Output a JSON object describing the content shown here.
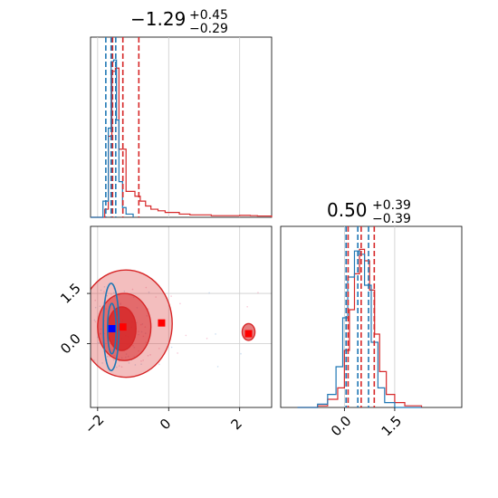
{
  "chart_data": {
    "type": "corner",
    "parameters": [
      {
        "title_value": "−1.29",
        "title_plus": "+0.45",
        "title_minus": "−0.29"
      },
      {
        "title_value": "0.50",
        "title_plus": "+0.39",
        "title_minus": "−0.39"
      }
    ],
    "colors": {
      "red": "#d62728",
      "blue": "#1f77b4",
      "red_marker": "#ff0000",
      "blue_marker": "#0000ff",
      "grid": "#cccccc"
    },
    "ranges": {
      "x": [
        -2.2,
        2.9
      ],
      "y": [
        -1.9,
        3.5
      ]
    },
    "ticks": {
      "x": [
        {
          "value": -2,
          "label": "−2"
        },
        {
          "value": 0,
          "label": "0"
        },
        {
          "value": 2,
          "label": "2"
        }
      ],
      "y": [
        {
          "value": 0.0,
          "label": "0.0"
        },
        {
          "value": 1.5,
          "label": "1.5"
        }
      ]
    },
    "hist_x": {
      "quantiles_red": [
        -1.58,
        -1.29,
        -0.84
      ],
      "quantiles_blue": [
        -1.77,
        -1.62,
        -1.49
      ],
      "red_bins": [
        [
          -2.2,
          0.0
        ],
        [
          -1.8,
          0.05
        ],
        [
          -1.7,
          0.5
        ],
        [
          -1.6,
          0.9
        ],
        [
          -1.5,
          0.92
        ],
        [
          -1.4,
          0.42
        ],
        [
          -1.2,
          0.16
        ],
        [
          -0.95,
          0.13
        ],
        [
          -0.8,
          0.1
        ],
        [
          -0.65,
          0.07
        ],
        [
          -0.5,
          0.05
        ],
        [
          -0.3,
          0.04
        ],
        [
          -0.1,
          0.03
        ],
        [
          0.3,
          0.02
        ],
        [
          0.6,
          0.015
        ],
        [
          1.2,
          0.01
        ],
        [
          2.0,
          0.012
        ],
        [
          2.3,
          0.01
        ],
        [
          2.5,
          0.008
        ],
        [
          2.9,
          0.0
        ]
      ],
      "blue_bins": [
        [
          -2.2,
          0.0
        ],
        [
          -1.85,
          0.1
        ],
        [
          -1.7,
          0.55
        ],
        [
          -1.62,
          0.96
        ],
        [
          -1.55,
          0.97
        ],
        [
          -1.47,
          0.6
        ],
        [
          -1.4,
          0.22
        ],
        [
          -1.3,
          0.06
        ],
        [
          -1.2,
          0.02
        ],
        [
          -1.0,
          0.0
        ]
      ]
    },
    "hist_y": {
      "quantiles_red": [
        0.11,
        0.5,
        0.89
      ],
      "quantiles_blue": [
        0.05,
        0.4,
        0.72
      ],
      "red_bins": [
        [
          -1.4,
          0.0
        ],
        [
          -0.8,
          0.01
        ],
        [
          -0.5,
          0.05
        ],
        [
          -0.2,
          0.12
        ],
        [
          0.0,
          0.35
        ],
        [
          0.15,
          0.6
        ],
        [
          0.3,
          0.82
        ],
        [
          0.45,
          0.97
        ],
        [
          0.6,
          0.9
        ],
        [
          0.75,
          0.72
        ],
        [
          0.9,
          0.45
        ],
        [
          1.05,
          0.22
        ],
        [
          1.25,
          0.08
        ],
        [
          1.5,
          0.03
        ],
        [
          1.8,
          0.01
        ],
        [
          2.3,
          0.0
        ]
      ],
      "blue_bins": [
        [
          -1.4,
          0.0
        ],
        [
          -0.8,
          0.02
        ],
        [
          -0.5,
          0.08
        ],
        [
          -0.25,
          0.25
        ],
        [
          -0.05,
          0.55
        ],
        [
          0.1,
          0.8
        ],
        [
          0.3,
          0.96
        ],
        [
          0.45,
          0.94
        ],
        [
          0.6,
          0.75
        ],
        [
          0.8,
          0.4
        ],
        [
          1.0,
          0.12
        ],
        [
          1.2,
          0.03
        ],
        [
          1.5,
          0.0
        ],
        [
          2.3,
          0.0
        ]
      ]
    },
    "scatter": {
      "markers": [
        {
          "color": "red",
          "x": -1.29,
          "y": 0.5
        },
        {
          "color": "red",
          "x": -0.2,
          "y": 0.62
        },
        {
          "color": "red",
          "x": 2.25,
          "y": 0.3
        },
        {
          "color": "blue",
          "x": -1.6,
          "y": 0.45
        }
      ],
      "red_contours": [
        {
          "cx": -1.2,
          "cy": 0.6,
          "rx": 1.3,
          "ry": 1.6,
          "opacity": 0.3
        },
        {
          "cx": -1.25,
          "cy": 0.5,
          "rx": 0.75,
          "ry": 1.0,
          "opacity": 0.55
        },
        {
          "cx": -1.32,
          "cy": 0.45,
          "rx": 0.4,
          "ry": 0.65,
          "opacity": 0.85
        },
        {
          "cx": 2.25,
          "cy": 0.35,
          "rx": 0.18,
          "ry": 0.25,
          "opacity": 0.6
        }
      ],
      "blue_contours": [
        {
          "cx": -1.62,
          "cy": 0.5,
          "rx": 0.22,
          "ry": 1.3
        },
        {
          "cx": -1.6,
          "cy": 0.45,
          "rx": 0.12,
          "ry": 0.75
        }
      ]
    }
  }
}
